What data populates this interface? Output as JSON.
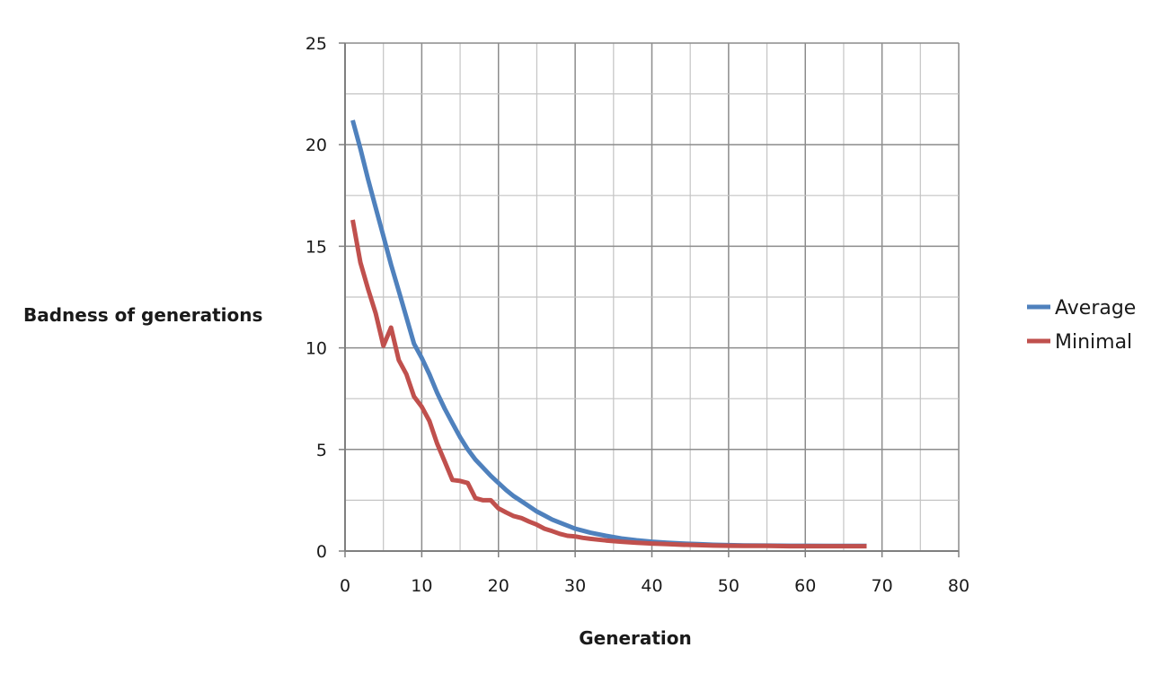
{
  "chart_data": {
    "type": "line",
    "title": "",
    "xlabel": "Generation",
    "ylabel": "Badness of generations",
    "xlim": [
      0,
      80
    ],
    "ylim": [
      0,
      25
    ],
    "x_major_step": 10,
    "x_minor_step": 5,
    "y_major_step": 5,
    "y_minor_step": 2.5,
    "x_tick_labels": [
      "0",
      "10",
      "20",
      "30",
      "40",
      "50",
      "60",
      "70",
      "80"
    ],
    "y_tick_labels": [
      "0",
      "5",
      "10",
      "15",
      "20",
      "25"
    ],
    "grid": true,
    "legend_position": "right",
    "series": [
      {
        "name": "Average",
        "color": "#4f81bd",
        "points": [
          [
            1,
            21.2
          ],
          [
            2,
            19.8
          ],
          [
            3,
            18.3
          ],
          [
            4,
            16.9
          ],
          [
            5,
            15.5
          ],
          [
            6,
            14.1
          ],
          [
            7,
            12.8
          ],
          [
            8,
            11.5
          ],
          [
            9,
            10.2
          ],
          [
            10,
            9.5
          ],
          [
            11,
            8.7
          ],
          [
            12,
            7.8
          ],
          [
            13,
            7.0
          ],
          [
            14,
            6.3
          ],
          [
            15,
            5.6
          ],
          [
            16,
            5.0
          ],
          [
            17,
            4.5
          ],
          [
            18,
            4.1
          ],
          [
            19,
            3.7
          ],
          [
            20,
            3.35
          ],
          [
            21,
            3.0
          ],
          [
            22,
            2.7
          ],
          [
            23,
            2.45
          ],
          [
            24,
            2.2
          ],
          [
            25,
            1.95
          ],
          [
            26,
            1.75
          ],
          [
            27,
            1.55
          ],
          [
            28,
            1.4
          ],
          [
            29,
            1.25
          ],
          [
            30,
            1.1
          ],
          [
            32,
            0.9
          ],
          [
            34,
            0.75
          ],
          [
            36,
            0.62
          ],
          [
            38,
            0.53
          ],
          [
            40,
            0.46
          ],
          [
            42,
            0.41
          ],
          [
            44,
            0.37
          ],
          [
            46,
            0.34
          ],
          [
            48,
            0.31
          ],
          [
            50,
            0.29
          ],
          [
            52,
            0.28
          ],
          [
            55,
            0.27
          ],
          [
            58,
            0.26
          ],
          [
            60,
            0.26
          ],
          [
            63,
            0.25
          ],
          [
            65,
            0.25
          ],
          [
            68,
            0.25
          ]
        ]
      },
      {
        "name": "Minimal",
        "color": "#c0504d",
        "points": [
          [
            1,
            16.3
          ],
          [
            2,
            14.2
          ],
          [
            3,
            12.9
          ],
          [
            4,
            11.7
          ],
          [
            5,
            10.1
          ],
          [
            6,
            11.0
          ],
          [
            7,
            9.4
          ],
          [
            8,
            8.7
          ],
          [
            9,
            7.6
          ],
          [
            10,
            7.1
          ],
          [
            11,
            6.4
          ],
          [
            12,
            5.3
          ],
          [
            13,
            4.4
          ],
          [
            14,
            3.5
          ],
          [
            15,
            3.45
          ],
          [
            16,
            3.35
          ],
          [
            17,
            2.6
          ],
          [
            18,
            2.5
          ],
          [
            19,
            2.5
          ],
          [
            20,
            2.1
          ],
          [
            21,
            1.9
          ],
          [
            22,
            1.72
          ],
          [
            23,
            1.62
          ],
          [
            24,
            1.45
          ],
          [
            25,
            1.3
          ],
          [
            26,
            1.1
          ],
          [
            27,
            0.98
          ],
          [
            28,
            0.85
          ],
          [
            29,
            0.75
          ],
          [
            30,
            0.72
          ],
          [
            31,
            0.65
          ],
          [
            32,
            0.6
          ],
          [
            33,
            0.56
          ],
          [
            34,
            0.52
          ],
          [
            36,
            0.46
          ],
          [
            38,
            0.41
          ],
          [
            40,
            0.37
          ],
          [
            42,
            0.34
          ],
          [
            44,
            0.31
          ],
          [
            46,
            0.29
          ],
          [
            48,
            0.27
          ],
          [
            50,
            0.26
          ],
          [
            52,
            0.25
          ],
          [
            55,
            0.25
          ],
          [
            58,
            0.24
          ],
          [
            60,
            0.24
          ],
          [
            63,
            0.24
          ],
          [
            65,
            0.24
          ],
          [
            68,
            0.24
          ]
        ]
      }
    ]
  }
}
